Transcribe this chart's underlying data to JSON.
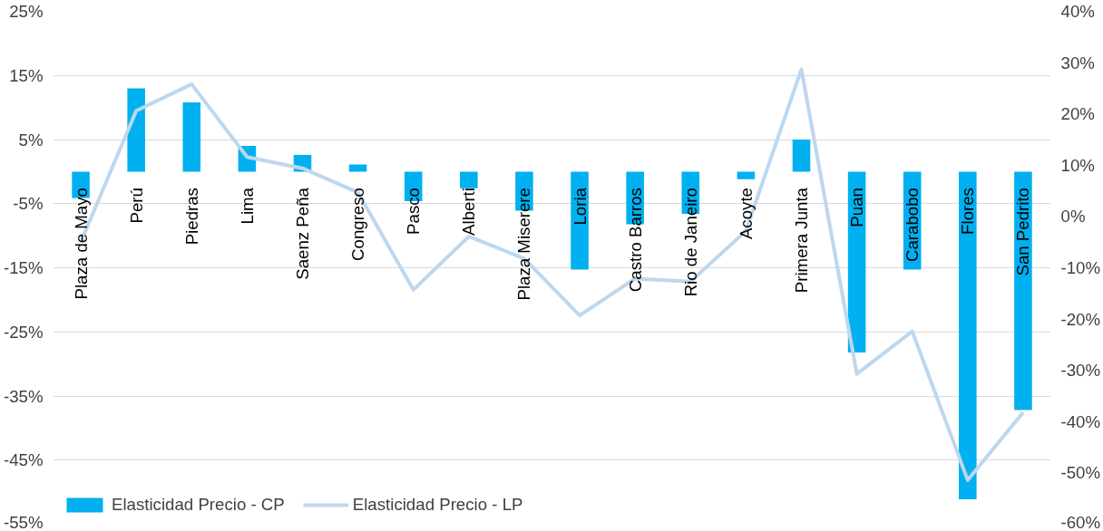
{
  "chart_data": {
    "type": "bar",
    "categories": [
      "Plaza de Mayo",
      "Perú",
      "Piedras",
      "Lima",
      "Saenz Peña",
      "Congreso",
      "Pasco",
      "Alberti",
      "Plaza Miserere",
      "Loria",
      "Castro Barros",
      "Rio de Janeiro",
      "Acoyte",
      "Primera Junta",
      "Puan",
      "Carabobo",
      "Flores",
      "San Pedrito"
    ],
    "series": [
      {
        "name": "Elasticidad Precio - CP",
        "color": "#00b0f0",
        "values": [
          -4.1,
          13.0,
          10.8,
          4.0,
          2.6,
          1.1,
          -4.6,
          -2.6,
          -6.1,
          -15.3,
          -8.2,
          -6.6,
          -1.2,
          5.0,
          -28.2,
          -15.3,
          -51.1,
          -37.2
        ]
      },
      {
        "name": "Elasticidad Precio - LP",
        "type": "line",
        "axis": "y2",
        "color": "#bdd7ee",
        "values": [
          -5.0,
          20.6,
          25.8,
          11.6,
          9.4,
          4.7,
          -14.3,
          -3.9,
          -8.2,
          -19.3,
          -12.1,
          -12.7,
          -2.8,
          28.7,
          -30.7,
          -22.4,
          -51.4,
          -38.2
        ]
      }
    ],
    "ylim": [
      -55,
      25
    ],
    "yticks": [
      {
        "value": -55,
        "label": "-55%"
      },
      {
        "value": -45,
        "label": "-45%"
      },
      {
        "value": -35,
        "label": "-35%"
      },
      {
        "value": -25,
        "label": "-25%"
      },
      {
        "value": -15,
        "label": "-15%"
      },
      {
        "value": -5,
        "label": "-5%"
      },
      {
        "value": 5,
        "label": "5%"
      },
      {
        "value": 15,
        "label": "15%"
      },
      {
        "value": 25,
        "label": "25%"
      }
    ],
    "y2lim": [
      -60,
      40
    ],
    "y2ticks": [
      {
        "value": -60,
        "label": "-60%"
      },
      {
        "value": -50,
        "label": "-50%"
      },
      {
        "value": -40,
        "label": "-40%"
      },
      {
        "value": -30,
        "label": "-30%"
      },
      {
        "value": -20,
        "label": "-20%"
      },
      {
        "value": -10,
        "label": "-10%"
      },
      {
        "value": 0,
        "label": "0%"
      },
      {
        "value": 10,
        "label": "10%"
      },
      {
        "value": 20,
        "label": "20%"
      },
      {
        "value": 30,
        "label": "30%"
      },
      {
        "value": 40,
        "label": "40%"
      }
    ],
    "grid": "y",
    "legend": "bottom left"
  }
}
